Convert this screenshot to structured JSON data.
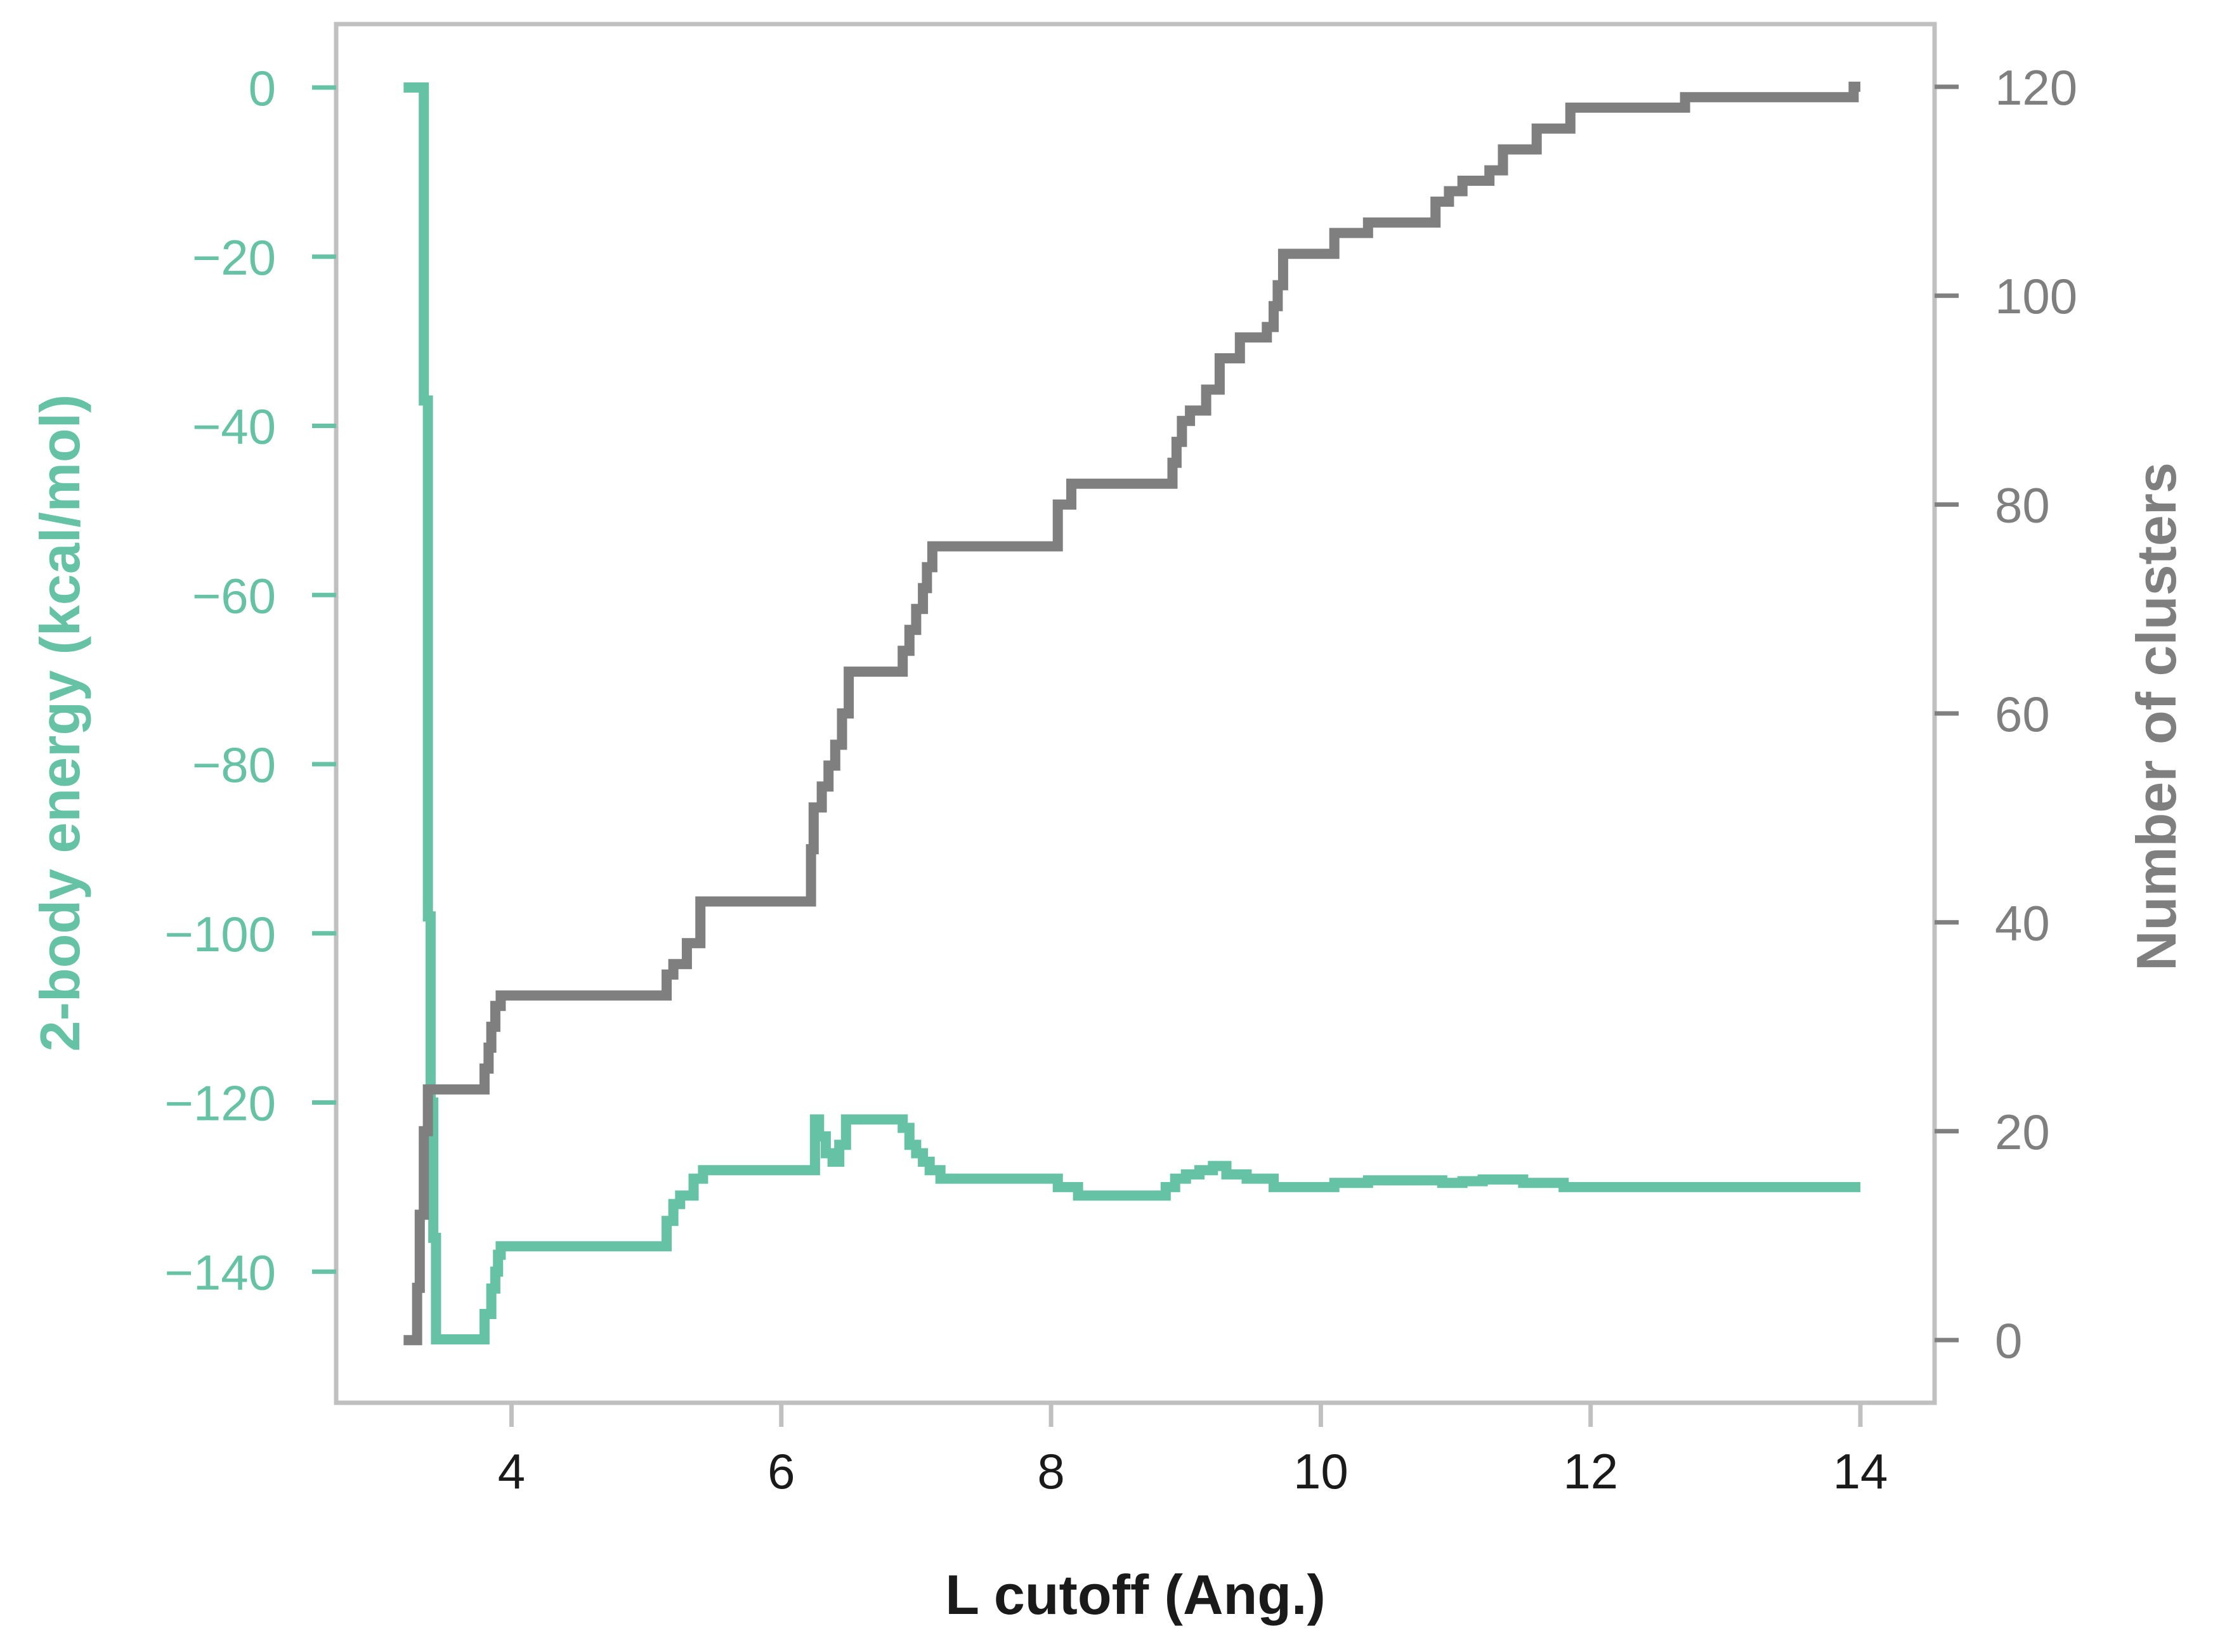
{
  "chart_data": {
    "type": "line",
    "xlabel": "L cutoff (Ang.)",
    "xlim": [
      2.7,
      14.55
    ],
    "x_ticks": [
      4,
      6,
      8,
      10,
      12,
      14
    ],
    "x_tick_labels": [
      "4",
      "6",
      "8",
      "10",
      "12",
      "14"
    ],
    "grid": false,
    "legend": "none",
    "left_axis": {
      "label": "2-body energy (kcal/mol)",
      "color": "#66c2a5",
      "ylim": [
        -155.5,
        7.5
      ],
      "ticks": [
        0,
        -20,
        -40,
        -60,
        -80,
        -100,
        -120,
        -140
      ],
      "tick_labels": [
        "0",
        "−20",
        "−40",
        "−60",
        "−80",
        "−100",
        "−120",
        "−140"
      ]
    },
    "right_axis": {
      "label": "Number of clusters",
      "color": "#7f7f7f",
      "ylim": [
        -6,
        126
      ],
      "ticks": [
        0,
        20,
        40,
        60,
        80,
        100,
        120
      ],
      "tick_labels": [
        "0",
        "20",
        "40",
        "60",
        "80",
        "100",
        "120"
      ]
    },
    "series": [
      {
        "axis": "left",
        "color": "#66c2a5",
        "drawstyle": "steps-post",
        "x": [
          3.2,
          3.35,
          3.38,
          3.4,
          3.42,
          3.44,
          3.46,
          3.5,
          3.8,
          3.85,
          3.88,
          3.9,
          3.92,
          3.96,
          5.15,
          5.2,
          5.25,
          5.35,
          5.42,
          6.25,
          6.28,
          6.33,
          6.38,
          6.43,
          6.48,
          6.9,
          6.95,
          7.0,
          7.05,
          7.1,
          7.18,
          8.05,
          8.2,
          8.85,
          8.92,
          9.0,
          9.1,
          9.2,
          9.3,
          9.45,
          9.55,
          9.65,
          9.75,
          10.1,
          10.35,
          10.9,
          11.05,
          11.2,
          11.5,
          11.8,
          12.7,
          14.0
        ],
        "y": [
          0,
          -37,
          -98,
          -120,
          -136,
          -148,
          -148,
          -148,
          -145,
          -142,
          -140,
          -138,
          -137,
          -137,
          -134,
          -132,
          -131,
          -129,
          -128,
          -122,
          -124,
          -126,
          -127,
          -125,
          -122,
          -123,
          -125,
          -126,
          -127,
          -128,
          -129,
          -130,
          -131,
          -130,
          -129,
          -128.5,
          -128,
          -127.5,
          -128.5,
          -129,
          -129,
          -130,
          -130,
          -129.5,
          -129.2,
          -129.5,
          -129.3,
          -129.1,
          -129.5,
          -130,
          -130,
          -130
        ]
      },
      {
        "axis": "right",
        "color": "#7f7f7f",
        "drawstyle": "steps-post",
        "x": [
          3.2,
          3.3,
          3.32,
          3.35,
          3.38,
          3.4,
          3.8,
          3.83,
          3.85,
          3.88,
          3.92,
          5.15,
          5.2,
          5.3,
          5.4,
          6.22,
          6.24,
          6.3,
          6.35,
          6.4,
          6.45,
          6.5,
          6.9,
          6.95,
          7.0,
          7.05,
          7.08,
          7.12,
          8.05,
          8.15,
          8.9,
          8.93,
          8.97,
          9.03,
          9.15,
          9.25,
          9.4,
          9.6,
          9.65,
          9.68,
          9.72,
          10.1,
          10.35,
          10.85,
          10.95,
          11.05,
          11.25,
          11.35,
          11.6,
          11.85,
          12.7,
          13.95,
          14.0
        ],
        "y": [
          0,
          5,
          12,
          20,
          24,
          24,
          26,
          28,
          30,
          32,
          33,
          35,
          36,
          38,
          42,
          47,
          51,
          53,
          55,
          57,
          60,
          64,
          66,
          68,
          70,
          72,
          74,
          76,
          80,
          82,
          84,
          86,
          88,
          89,
          91,
          94,
          96,
          97,
          99,
          101,
          104,
          106,
          107,
          109,
          110,
          111,
          112,
          114,
          116,
          118,
          119,
          120,
          120
        ]
      }
    ]
  }
}
